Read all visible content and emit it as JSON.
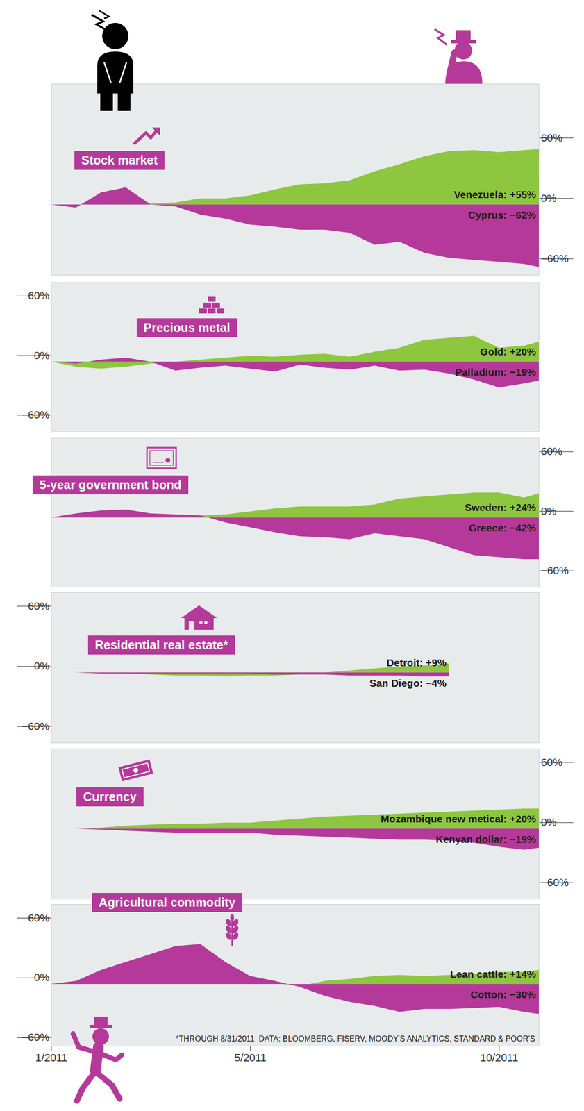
{
  "chart_data": [
    {
      "type": "area",
      "title": "Stock market",
      "x": [
        1,
        1.5,
        2,
        2.5,
        3,
        3.5,
        4,
        4.5,
        5,
        5.5,
        6,
        6.5,
        7,
        7.5,
        8,
        8.5,
        9,
        9.5,
        10,
        10.5,
        10.8
      ],
      "xlim": [
        1,
        10.8
      ],
      "ylim": [
        -70,
        120
      ],
      "yticks": [
        {
          "value": -60,
          "label": "−60%"
        },
        {
          "value": 0,
          "label": "0%"
        },
        {
          "value": 60,
          "label": "60%"
        }
      ],
      "tick_labels": "y",
      "series": [
        {
          "name": "Venezuela: +55%",
          "color": "#8dc63f",
          "values": [
            0,
            0,
            1,
            1,
            1,
            2,
            6,
            6,
            9,
            15,
            20,
            21,
            24,
            33,
            40,
            48,
            53,
            54,
            52,
            54,
            55
          ]
        },
        {
          "name": "Cyprus: −62%",
          "color": "#b5399a",
          "values": [
            0,
            -3,
            12,
            17,
            0,
            -2,
            -10,
            -14,
            -20,
            -22,
            -25,
            -25,
            -28,
            -40,
            -37,
            -48,
            -53,
            -55,
            -57,
            -59,
            -62
          ]
        }
      ]
    },
    {
      "type": "area",
      "title": "Precious metal",
      "x": [
        1,
        1.5,
        2,
        2.5,
        3,
        3.5,
        4,
        4.5,
        5,
        5.5,
        6,
        6.5,
        7,
        7.5,
        8,
        8.5,
        9,
        9.5,
        10,
        10.5,
        10.8
      ],
      "xlim": [
        1,
        10.8
      ],
      "ylim": [
        -70,
        80
      ],
      "yticks": [
        {
          "value": -60,
          "label": "−60%"
        },
        {
          "value": 0,
          "label": "0%"
        },
        {
          "value": 60,
          "label": "60%"
        }
      ],
      "tick_labels": "y",
      "series": [
        {
          "name": "Gold: +20%",
          "color": "#8dc63f",
          "values": [
            0,
            -5,
            -7,
            -5,
            -2,
            0,
            2,
            4,
            6,
            5,
            7,
            8,
            5,
            10,
            14,
            22,
            24,
            26,
            14,
            16,
            20
          ]
        },
        {
          "name": "Palladium: −19%",
          "color": "#b5399a",
          "values": [
            0,
            -2,
            2,
            4,
            0,
            -9,
            -6,
            -4,
            -7,
            -10,
            -3,
            -6,
            -8,
            -4,
            -9,
            -8,
            -12,
            -18,
            -26,
            -22,
            -19
          ]
        }
      ]
    },
    {
      "type": "area",
      "title": "5-year government bond",
      "x": [
        1,
        1.5,
        2,
        2.5,
        3,
        3.5,
        4,
        4.5,
        5,
        5.5,
        6,
        6.5,
        7,
        7.5,
        8,
        8.5,
        9,
        9.5,
        10,
        10.5,
        10.8
      ],
      "xlim": [
        1,
        10.8
      ],
      "ylim": [
        -70,
        80
      ],
      "yticks": [
        {
          "value": -60,
          "label": "−60%"
        },
        {
          "value": 0,
          "label": "0%"
        },
        {
          "value": 60,
          "label": "60%"
        }
      ],
      "tick_labels": "y",
      "series": [
        {
          "name": "Sweden: +24%",
          "color": "#8dc63f",
          "values": [
            0,
            1,
            1,
            2,
            2,
            2,
            2,
            3,
            6,
            9,
            11,
            11,
            11,
            13,
            19,
            21,
            23,
            25,
            25,
            20,
            24
          ]
        },
        {
          "name": "Greece: −42%",
          "color": "#b5399a",
          "values": [
            0,
            4,
            7,
            8,
            4,
            3,
            2,
            -5,
            -10,
            -15,
            -19,
            -20,
            -22,
            -16,
            -19,
            -22,
            -30,
            -38,
            -40,
            -42,
            -42
          ]
        }
      ]
    },
    {
      "type": "area",
      "title": "Residential real estate*",
      "x": [
        1,
        1.5,
        2,
        2.5,
        3,
        3.5,
        4,
        4.5,
        5,
        5.5,
        6,
        6.5,
        7,
        7.5,
        8,
        8.5,
        9,
        9.5,
        10,
        10.5,
        10.8
      ],
      "xlim": [
        1,
        10.8
      ],
      "ylim": [
        -70,
        80
      ],
      "yticks": [
        {
          "value": -60,
          "label": "−60%"
        },
        {
          "value": 0,
          "label": "0%"
        },
        {
          "value": 60,
          "label": "60%"
        }
      ],
      "tick_labels": "y",
      "series": [
        {
          "name": "Detroit: +9%",
          "color": "#8dc63f",
          "values": [
            0,
            0,
            -1,
            -1,
            -2,
            -3,
            -3,
            -4,
            -3,
            -3,
            -2,
            0,
            2,
            4,
            6,
            7,
            9,
            null,
            null,
            null,
            null
          ]
        },
        {
          "name": "San Diego: −4%",
          "color": "#b5399a",
          "values": [
            0,
            0,
            -1,
            -1,
            -1,
            -1,
            -1,
            -1,
            -1,
            -2,
            -2,
            -2,
            -3,
            -3,
            -3,
            -4,
            -4,
            null,
            null,
            null,
            null
          ]
        }
      ]
    },
    {
      "type": "area",
      "title": "Currency",
      "x": [
        1,
        1.5,
        2,
        2.5,
        3,
        3.5,
        4,
        4.5,
        5,
        5.5,
        6,
        6.5,
        7,
        7.5,
        8,
        8.5,
        9,
        9.5,
        10,
        10.5,
        10.8
      ],
      "xlim": [
        1,
        10.8
      ],
      "ylim": [
        -70,
        80
      ],
      "yticks": [
        {
          "value": -60,
          "label": "−60%"
        },
        {
          "value": 0,
          "label": "0%"
        },
        {
          "value": 60,
          "label": "60%"
        }
      ],
      "tick_labels": "y",
      "series": [
        {
          "name": "Mozambique new metical: +20%",
          "color": "#8dc63f",
          "values": [
            0,
            0,
            1,
            3,
            4,
            5,
            5,
            6,
            6,
            8,
            10,
            12,
            13,
            14,
            15,
            16,
            17,
            18,
            19,
            20,
            20
          ]
        },
        {
          "name": "Kenyan dollar: −19%",
          "color": "#b5399a",
          "values": [
            0,
            0,
            -1,
            -2,
            -3,
            -4,
            -4,
            -4,
            -4,
            -6,
            -7,
            -8,
            -9,
            -10,
            -11,
            -11,
            -12,
            -14,
            -18,
            -21,
            -19
          ]
        }
      ]
    },
    {
      "type": "area",
      "title": "Agricultural commodity",
      "x": [
        1,
        1.5,
        2,
        2.5,
        3,
        3.5,
        4,
        4.5,
        5,
        5.5,
        6,
        6.5,
        7,
        7.5,
        8,
        8.5,
        9,
        9.5,
        10,
        10.5,
        10.8
      ],
      "xlim": [
        1,
        10.8
      ],
      "ylim": [
        -62,
        80
      ],
      "xticks": [
        {
          "value": 1,
          "label": "1/2011"
        },
        {
          "value": 5,
          "label": "5/2011"
        },
        {
          "value": 10,
          "label": "10/2011"
        }
      ],
      "yticks": [
        {
          "value": -60,
          "label": "−60%"
        },
        {
          "value": 0,
          "label": "0%"
        },
        {
          "value": 60,
          "label": "60%"
        }
      ],
      "caption": "*THROUGH 8/31/2011  DATA: BLOOMBERG, FISERV, MOODY'S ANALYTICS, STANDARD & POOR'S",
      "series": [
        {
          "name": "Lean cattle: +14%",
          "color": "#8dc63f",
          "values": [
            0,
            3,
            5,
            5,
            6,
            7,
            8,
            7,
            4,
            1,
            -2,
            3,
            5,
            8,
            9,
            8,
            9,
            10,
            12,
            12,
            14
          ]
        },
        {
          "name": "Cotton: −30%",
          "color": "#b5399a",
          "values": [
            0,
            3,
            14,
            22,
            30,
            38,
            40,
            22,
            8,
            3,
            -3,
            -12,
            -18,
            -22,
            -28,
            -25,
            -25,
            -24,
            -23,
            -28,
            -30
          ]
        }
      ]
    }
  ]
}
